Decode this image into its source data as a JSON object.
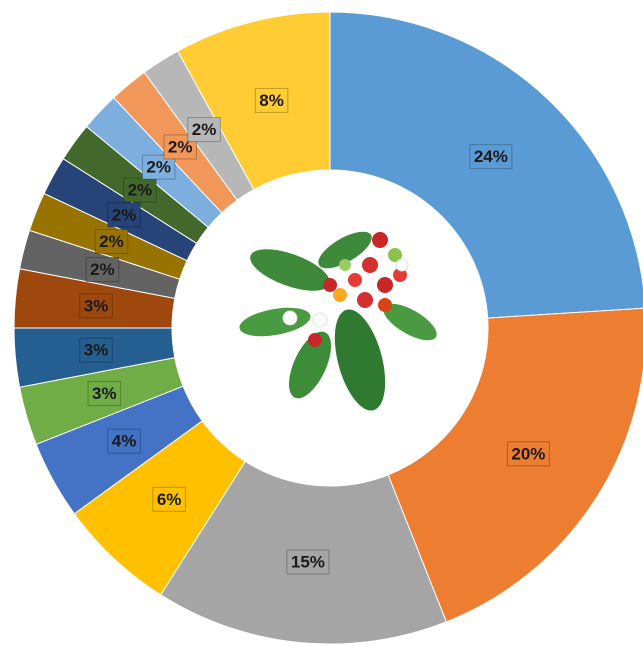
{
  "chart_data": {
    "type": "donut",
    "values": [
      24,
      20,
      15,
      6,
      4,
      3,
      3,
      3,
      2,
      2,
      2,
      2,
      2,
      2,
      2,
      8
    ],
    "value_labels": [
      "24%",
      "20%",
      "15%",
      "6%",
      "4%",
      "3%",
      "3%",
      "3%",
      "2%",
      "2%",
      "2%",
      "2%",
      "2%",
      "2%",
      "2%",
      "8%"
    ],
    "colors": [
      "#5b9bd5",
      "#ed7d31",
      "#a5a5a5",
      "#ffc000",
      "#4472c4",
      "#70ad47",
      "#255e91",
      "#9e480e",
      "#636363",
      "#997300",
      "#264478",
      "#43682b",
      "#7cafdd",
      "#f1975a",
      "#b7b7b7",
      "#ffcd33"
    ]
  }
}
